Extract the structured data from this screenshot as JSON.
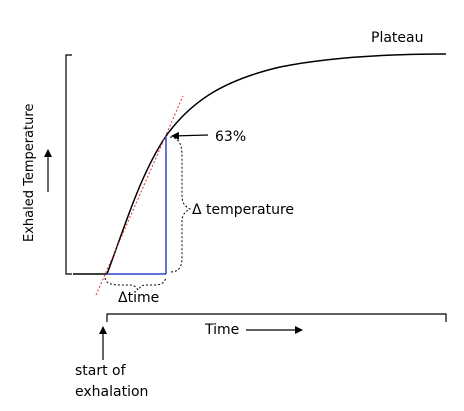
{
  "labels": {
    "plateau": "Plateau",
    "pct63": "63%",
    "delta_temperature": "Δ temperature",
    "delta_time": "Δtime",
    "time_axis": "Time",
    "y_axis": "Exhaled Temperature",
    "start_line1": "start of",
    "start_line2": "exhalation"
  },
  "colors": {
    "curve": "#000000",
    "tangent": "#e03030",
    "delta_lines": "#3344cc",
    "brackets": "#000000"
  }
}
